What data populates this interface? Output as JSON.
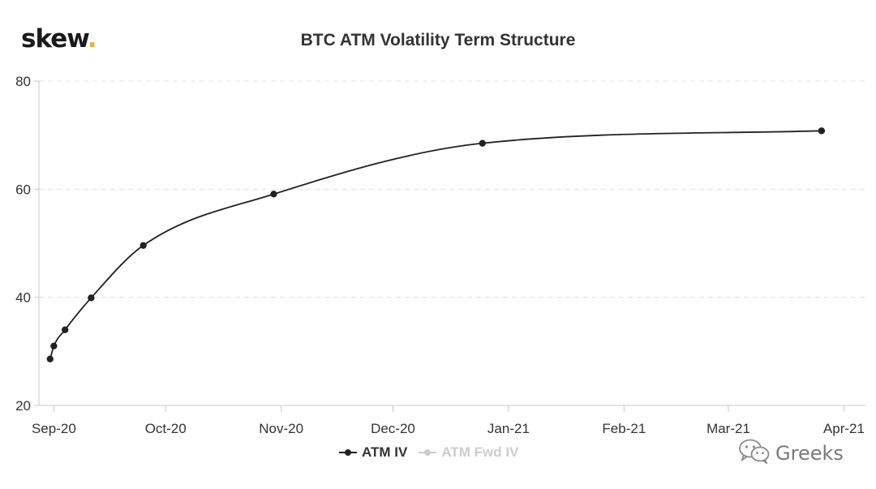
{
  "header": {
    "logo_text": "skew",
    "logo_dot": ".",
    "title": "BTC ATM Volatility Term Structure"
  },
  "watermark": {
    "text": "Greeks",
    "icon": "wechat-icon"
  },
  "colors": {
    "series_atm_iv": "#222222",
    "series_atm_fwd_iv": "#cccccc",
    "grid": "#e0e0e0",
    "axis": "#c8c8c8",
    "logo_dot": "#e8b33a",
    "text": "#333333"
  },
  "chart_data": {
    "type": "line",
    "title": "BTC ATM Volatility Term Structure",
    "xlabel": "",
    "ylabel": "",
    "x_axis": {
      "ticks": [
        {
          "label": "Sep-20",
          "date": "2020-09-01"
        },
        {
          "label": "Oct-20",
          "date": "2020-10-01"
        },
        {
          "label": "Nov-20",
          "date": "2020-11-01"
        },
        {
          "label": "Dec-20",
          "date": "2020-12-01"
        },
        {
          "label": "Jan-21",
          "date": "2021-01-01"
        },
        {
          "label": "Feb-21",
          "date": "2021-02-01"
        },
        {
          "label": "Mar-21",
          "date": "2021-03-01"
        },
        {
          "label": "Apr-21",
          "date": "2021-04-01"
        }
      ],
      "range": [
        "2020-08-28",
        "2021-04-07"
      ]
    },
    "y_axis": {
      "ticks": [
        20,
        40,
        60,
        80
      ],
      "ylim": [
        20,
        80
      ]
    },
    "grid": {
      "horizontal": true,
      "style": "dashed"
    },
    "legend": {
      "placement": "bottom-center"
    },
    "series": [
      {
        "name": "ATM IV",
        "visible": true,
        "points": [
          {
            "x": "2020-08-31",
            "y": 28.6
          },
          {
            "x": "2020-09-01",
            "y": 31.0
          },
          {
            "x": "2020-09-04",
            "y": 34.0
          },
          {
            "x": "2020-09-11",
            "y": 39.9
          },
          {
            "x": "2020-09-25",
            "y": 49.6
          },
          {
            "x": "2020-10-30",
            "y": 59.1
          },
          {
            "x": "2020-12-25",
            "y": 68.5
          },
          {
            "x": "2021-03-26",
            "y": 70.8
          }
        ]
      },
      {
        "name": "ATM Fwd IV",
        "visible": false,
        "points": []
      }
    ]
  }
}
